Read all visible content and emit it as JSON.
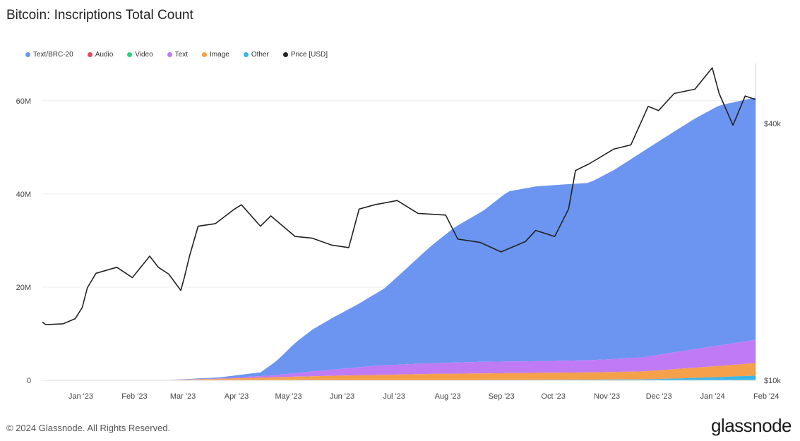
{
  "chart_data": {
    "type": "area",
    "title": "Bitcoin: Inscriptions Total Count",
    "x_labels": [
      "Jan '23",
      "Feb '23",
      "Mar '23",
      "Apr '23",
      "May '23",
      "Jun '23",
      "Jul '23",
      "Aug '23",
      "Sep '23",
      "Oct '23",
      "Nov '23",
      "Dec '23",
      "Jan '24",
      "Feb '24"
    ],
    "x_range": [
      "2022-12-20",
      "2024-02-05"
    ],
    "y_left": {
      "ticks": [
        0,
        20,
        40,
        60
      ],
      "tick_labels": [
        "0",
        "20M",
        "40M",
        "60M"
      ],
      "range": [
        0,
        68
      ]
    },
    "y_right": {
      "ticks": [
        10,
        40
      ],
      "tick_labels": [
        "$10k",
        "$40k"
      ],
      "range": [
        10,
        47
      ],
      "unit": "USD"
    },
    "legend_placement": "top-left",
    "grid": true,
    "series": [
      {
        "name": "Text/BRC-20",
        "color": "#6b95f0",
        "kind": "stacked-area",
        "x": [
          "2022-12-20",
          "2023-03-01",
          "2023-04-01",
          "2023-04-25",
          "2023-05-05",
          "2023-05-15",
          "2023-05-25",
          "2023-06-05",
          "2023-06-20",
          "2023-07-05",
          "2023-07-15",
          "2023-08-01",
          "2023-08-15",
          "2023-09-01",
          "2023-09-15",
          "2023-10-01",
          "2023-10-10",
          "2023-11-01",
          "2023-11-15",
          "2023-12-01",
          "2023-12-15",
          "2024-01-01",
          "2024-01-15",
          "2024-02-05"
        ],
        "values": [
          0,
          0,
          0.2,
          0.8,
          3.2,
          6.5,
          9.0,
          11.0,
          13.5,
          16.3,
          19.5,
          25.0,
          29.0,
          32.5,
          36.5,
          37.5,
          37.7,
          38.1,
          40.5,
          44.0,
          46.5,
          49.5,
          51.5,
          52.0
        ]
      },
      {
        "name": "Audio",
        "color": "#e9465c",
        "kind": "stacked-area",
        "x": [
          "2022-12-20",
          "2024-02-05"
        ],
        "values": [
          0,
          0
        ]
      },
      {
        "name": "Video",
        "color": "#2dd17e",
        "kind": "stacked-area",
        "x": [
          "2022-12-20",
          "2024-02-05"
        ],
        "values": [
          0,
          0
        ]
      },
      {
        "name": "Text",
        "color": "#c07af4",
        "kind": "stacked-area",
        "x": [
          "2022-12-20",
          "2023-03-01",
          "2023-04-01",
          "2023-05-01",
          "2023-06-01",
          "2023-07-01",
          "2023-08-01",
          "2023-09-01",
          "2023-10-01",
          "2023-11-01",
          "2023-12-01",
          "2024-01-01",
          "2024-02-05"
        ],
        "values": [
          0,
          0,
          0.1,
          0.4,
          1.2,
          2.0,
          2.3,
          2.5,
          2.5,
          2.6,
          3.0,
          4.0,
          5.0
        ]
      },
      {
        "name": "Image",
        "color": "#f5a04b",
        "kind": "stacked-area",
        "x": [
          "2022-12-20",
          "2023-03-01",
          "2023-04-01",
          "2023-05-01",
          "2023-06-01",
          "2023-07-01",
          "2023-08-01",
          "2023-09-01",
          "2023-10-01",
          "2023-11-01",
          "2023-12-01",
          "2024-01-01",
          "2024-02-05"
        ],
        "values": [
          0,
          0.05,
          0.3,
          0.6,
          0.9,
          1.1,
          1.3,
          1.4,
          1.5,
          1.55,
          1.7,
          2.2,
          2.7
        ]
      },
      {
        "name": "Other",
        "color": "#38b6e8",
        "kind": "stacked-area",
        "x": [
          "2022-12-20",
          "2023-04-01",
          "2023-07-01",
          "2023-10-01",
          "2023-12-01",
          "2024-01-01",
          "2024-02-05"
        ],
        "values": [
          0,
          0.02,
          0.05,
          0.1,
          0.2,
          0.5,
          1.0
        ]
      },
      {
        "name": "Price [USD]",
        "color": "#222222",
        "kind": "line",
        "axis": "right",
        "x": [
          "2022-12-20",
          "2022-12-22",
          "2023-01-01",
          "2023-01-08",
          "2023-01-12",
          "2023-01-15",
          "2023-01-20",
          "2023-02-01",
          "2023-02-10",
          "2023-02-20",
          "2023-02-25",
          "2023-03-03",
          "2023-03-10",
          "2023-03-12",
          "2023-03-15",
          "2023-03-20",
          "2023-03-30",
          "2023-04-10",
          "2023-04-14",
          "2023-04-25",
          "2023-05-01",
          "2023-05-15",
          "2023-05-25",
          "2023-06-05",
          "2023-06-15",
          "2023-06-21",
          "2023-06-30",
          "2023-07-13",
          "2023-07-25",
          "2023-08-10",
          "2023-08-17",
          "2023-08-30",
          "2023-09-11",
          "2023-09-25",
          "2023-10-01",
          "2023-10-12",
          "2023-10-20",
          "2023-10-24",
          "2023-11-01",
          "2023-11-15",
          "2023-11-25",
          "2023-12-05",
          "2023-12-11",
          "2023-12-20",
          "2024-01-01",
          "2024-01-11",
          "2024-01-15",
          "2024-01-23",
          "2024-01-30",
          "2024-02-05"
        ],
        "values": [
          16.8,
          16.5,
          16.6,
          17.2,
          18.5,
          20.8,
          22.5,
          23.2,
          22.0,
          24.5,
          23.2,
          22.4,
          20.5,
          22.0,
          24.5,
          28.0,
          28.3,
          30.0,
          30.5,
          28.0,
          29.2,
          26.8,
          26.6,
          25.8,
          25.5,
          30.0,
          30.5,
          31.0,
          29.5,
          29.3,
          26.5,
          26.1,
          25.0,
          26.2,
          27.5,
          26.8,
          30.0,
          34.5,
          35.3,
          37.0,
          37.5,
          42.0,
          41.5,
          43.5,
          44.0,
          46.5,
          43.5,
          39.8,
          43.2,
          42.8
        ]
      }
    ]
  },
  "footer": {
    "copyright": "© 2024 Glassnode. All Rights Reserved.",
    "brand": "glassnode"
  }
}
